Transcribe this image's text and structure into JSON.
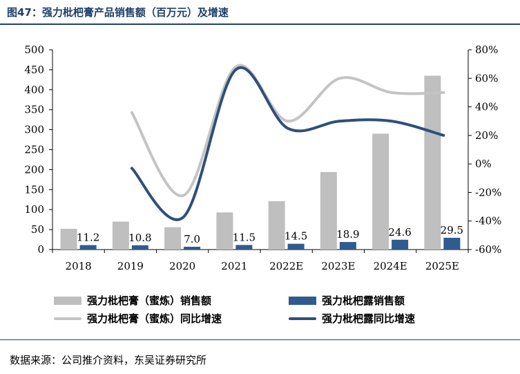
{
  "title": "图47：强力枇杷膏产品销售额（百万元）及增速",
  "source": "数据来源：公司推介资料，东吴证券研究所",
  "colors": {
    "grey_bar": "#bfbfbf",
    "blue_bar": "#2f5b8f",
    "grey_line": "#c4c4c4",
    "blue_line": "#2f4f7a",
    "title": "#1f3f6b"
  },
  "chart_data": {
    "type": "bar",
    "title": "强力枇杷膏产品销售额（百万元）及增速",
    "categories": [
      "2018",
      "2019",
      "2020",
      "2021",
      "2022E",
      "2023E",
      "2024E",
      "2025E"
    ],
    "series": [
      {
        "name": "强力枇杷膏（蜜炼）销售额",
        "type": "bar",
        "axis": "left",
        "color": "#bfbfbf",
        "values": [
          52,
          70,
          56,
          93,
          121,
          194,
          290,
          435
        ]
      },
      {
        "name": "强力枇杷露销售额",
        "type": "bar",
        "axis": "left",
        "color": "#2f5b8f",
        "values": [
          11.2,
          10.8,
          7.0,
          11.5,
          14.5,
          18.9,
          24.6,
          29.5
        ],
        "labels": [
          "11.2",
          "10.8",
          "7.0",
          "11.5",
          "14.5",
          "18.9",
          "24.6",
          "29.5"
        ]
      },
      {
        "name": "强力枇杷膏（蜜炼）同比增速",
        "type": "line",
        "axis": "right",
        "color": "#c4c4c4",
        "values": [
          null,
          36,
          -22,
          68,
          30,
          60,
          50,
          50
        ]
      },
      {
        "name": "强力枇杷露同比增速",
        "type": "line",
        "axis": "right",
        "color": "#2f4f7a",
        "values": [
          null,
          -3,
          -37,
          66,
          25,
          30,
          30,
          20
        ]
      }
    ],
    "yleft": {
      "min": 0,
      "max": 500,
      "ticks": [
        "0",
        "50",
        "100",
        "150",
        "200",
        "250",
        "300",
        "350",
        "400",
        "450",
        "500"
      ]
    },
    "yright": {
      "min": -60,
      "max": 80,
      "ticks": [
        "-60%",
        "-40%",
        "-20%",
        "0%",
        "20%",
        "40%",
        "60%",
        "80%"
      ]
    },
    "legend": {
      "grey_bar": "强力枇杷膏（蜜炼）销售额",
      "blue_bar": "强力枇杷露销售额",
      "grey_line": "强力枇杷膏（蜜炼）同比增速",
      "blue_line": "强力枇杷露同比增速",
      "position": "bottom"
    }
  }
}
